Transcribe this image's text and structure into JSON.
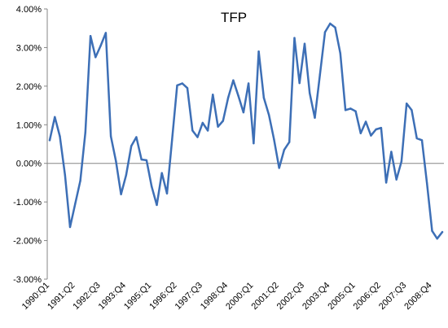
{
  "chart_data": {
    "type": "line",
    "title": "TFP",
    "xlabel": "",
    "ylabel": "",
    "ylim": [
      -3,
      4
    ],
    "y_ticks": [
      "-3.00%",
      "-2.00%",
      "-1.00%",
      "0.00%",
      "1.00%",
      "2.00%",
      "3.00%",
      "4.00%"
    ],
    "x_tick_labels": [
      "1990:Q1",
      "1991:Q2",
      "1992:Q3",
      "1993:Q4",
      "1995:Q1",
      "1996:Q2",
      "1997:Q3",
      "1998:Q4",
      "2000:Q1",
      "2001:Q2",
      "2002:Q3",
      "2003:Q4",
      "2005:Q1",
      "2006:Q2",
      "2007:Q3",
      "2008:Q4"
    ],
    "x_tick_start_index": 0,
    "x_tick_step": 5,
    "grid": false,
    "legend": "none",
    "line_color": "#3d6fb6",
    "series": [
      {
        "values": [
          0.6,
          1.2,
          0.7,
          -0.3,
          -1.65,
          -1.05,
          -0.45,
          0.8,
          3.3,
          2.75,
          3.05,
          3.38,
          0.7,
          0.05,
          -0.8,
          -0.3,
          0.45,
          0.68,
          0.1,
          0.08,
          -0.6,
          -1.08,
          -0.25,
          -0.78,
          0.6,
          2.02,
          2.07,
          1.95,
          0.85,
          0.68,
          1.05,
          0.85,
          1.78,
          0.95,
          1.1,
          1.7,
          2.15,
          1.75,
          1.32,
          2.07,
          0.52,
          2.9,
          1.7,
          1.25,
          0.62,
          -0.12,
          0.35,
          0.55,
          3.25,
          2.08,
          3.1,
          1.82,
          1.18,
          2.3,
          3.4,
          3.62,
          3.52,
          2.85,
          1.38,
          1.42,
          1.35,
          0.78,
          1.08,
          0.72,
          0.88,
          0.92,
          -0.5,
          0.3,
          -0.42,
          0.05,
          1.55,
          1.38,
          0.65,
          0.6,
          -0.52,
          -1.75,
          -1.95,
          -1.78
        ]
      }
    ]
  }
}
